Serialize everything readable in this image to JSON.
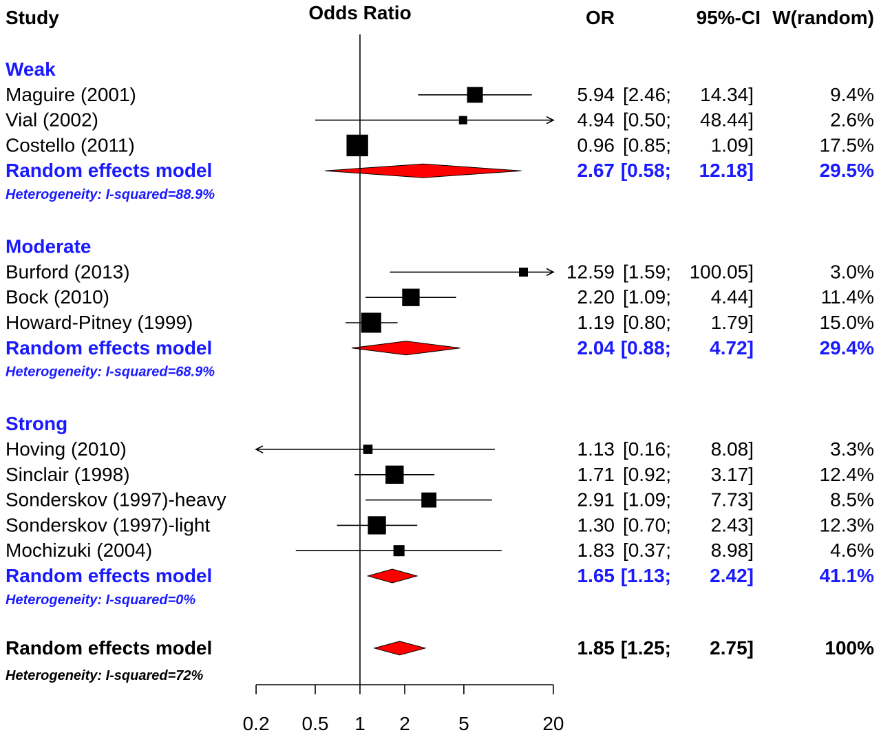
{
  "headers": {
    "study": "Study",
    "effect": "Odds Ratio",
    "or": "OR",
    "ci": "95%-CI",
    "weight": "W(random)"
  },
  "colors": {
    "group": "#1a1aff",
    "diamond": "#ff0000",
    "text": "#000000"
  },
  "chart_data": {
    "type": "forest",
    "xscale": "log",
    "xlim": [
      0.2,
      20
    ],
    "null_line": 1,
    "ticks": [
      0.2,
      0.5,
      1,
      2,
      5,
      20
    ],
    "tick_labels": [
      "0.2",
      "0.5",
      "1",
      "2",
      "5",
      "20"
    ],
    "groups": [
      {
        "name": "Weak",
        "studies": [
          {
            "label": "Maguire (2001)",
            "or": 5.94,
            "lower": 2.46,
            "upper": 14.34,
            "or_text": "5.94",
            "ci_lo_text": "[2.46;",
            "ci_hi_text": "14.34]",
            "weight_text": "9.4%",
            "weight": 9.4
          },
          {
            "label": "Vial (2002)",
            "or": 4.94,
            "lower": 0.5,
            "upper": 48.44,
            "or_text": "4.94",
            "ci_lo_text": "[0.50;",
            "ci_hi_text": "48.44]",
            "weight_text": "2.6%",
            "weight": 2.6
          },
          {
            "label": "Costello (2011)",
            "or": 0.96,
            "lower": 0.85,
            "upper": 1.09,
            "or_text": "0.96",
            "ci_lo_text": "[0.85;",
            "ci_hi_text": "1.09]",
            "weight_text": "17.5%",
            "weight": 17.5
          }
        ],
        "summary": {
          "label": "Random effects model",
          "or": 2.67,
          "lower": 0.58,
          "upper": 12.18,
          "or_text": "2.67",
          "ci_lo_text": "[0.58;",
          "ci_hi_text": "12.18]",
          "weight_text": "29.5%"
        },
        "heterogeneity": "Heterogeneity: I-squared=88.9%"
      },
      {
        "name": "Moderate",
        "studies": [
          {
            "label": "Burford (2013)",
            "or": 12.59,
            "lower": 1.59,
            "upper": 100.05,
            "or_text": "12.59",
            "ci_lo_text": "[1.59;",
            "ci_hi_text": "100.05]",
            "weight_text": "3.0%",
            "weight": 3.0
          },
          {
            "label": "Bock (2010)",
            "or": 2.2,
            "lower": 1.09,
            "upper": 4.44,
            "or_text": "2.20",
            "ci_lo_text": "[1.09;",
            "ci_hi_text": "4.44]",
            "weight_text": "11.4%",
            "weight": 11.4
          },
          {
            "label": "Howard-Pitney (1999)",
            "or": 1.19,
            "lower": 0.8,
            "upper": 1.79,
            "or_text": "1.19",
            "ci_lo_text": "[0.80;",
            "ci_hi_text": "1.79]",
            "weight_text": "15.0%",
            "weight": 15.0
          }
        ],
        "summary": {
          "label": "Random effects model",
          "or": 2.04,
          "lower": 0.88,
          "upper": 4.72,
          "or_text": "2.04",
          "ci_lo_text": "[0.88;",
          "ci_hi_text": "4.72]",
          "weight_text": "29.4%"
        },
        "heterogeneity": "Heterogeneity: I-squared=68.9%"
      },
      {
        "name": "Strong",
        "studies": [
          {
            "label": "Hoving (2010)",
            "or": 1.13,
            "lower": 0.16,
            "upper": 8.08,
            "or_text": "1.13",
            "ci_lo_text": "[0.16;",
            "ci_hi_text": "8.08]",
            "weight_text": "3.3%",
            "weight": 3.3
          },
          {
            "label": "Sinclair (1998)",
            "or": 1.71,
            "lower": 0.92,
            "upper": 3.17,
            "or_text": "1.71",
            "ci_lo_text": "[0.92;",
            "ci_hi_text": "3.17]",
            "weight_text": "12.4%",
            "weight": 12.4
          },
          {
            "label": "Sonderskov (1997)-heavy",
            "or": 2.91,
            "lower": 1.09,
            "upper": 7.73,
            "or_text": "2.91",
            "ci_lo_text": "[1.09;",
            "ci_hi_text": "7.73]",
            "weight_text": "8.5%",
            "weight": 8.5
          },
          {
            "label": "Sonderskov (1997)-light",
            "or": 1.3,
            "lower": 0.7,
            "upper": 2.43,
            "or_text": "1.30",
            "ci_lo_text": "[0.70;",
            "ci_hi_text": "2.43]",
            "weight_text": "12.3%",
            "weight": 12.3
          },
          {
            "label": "Mochizuki (2004)",
            "or": 1.83,
            "lower": 0.37,
            "upper": 8.98,
            "or_text": "1.83",
            "ci_lo_text": "[0.37;",
            "ci_hi_text": "8.98]",
            "weight_text": "4.6%",
            "weight": 4.6
          }
        ],
        "summary": {
          "label": "Random effects model",
          "or": 1.65,
          "lower": 1.13,
          "upper": 2.42,
          "or_text": "1.65",
          "ci_lo_text": "[1.13;",
          "ci_hi_text": "2.42]",
          "weight_text": "41.1%"
        },
        "heterogeneity": "Heterogeneity: I-squared=0%"
      }
    ],
    "overall": {
      "summary": {
        "label": "Random effects model",
        "or": 1.85,
        "lower": 1.25,
        "upper": 2.75,
        "or_text": "1.85",
        "ci_lo_text": "[1.25;",
        "ci_hi_text": "2.75]",
        "weight_text": "100%"
      },
      "heterogeneity": "Heterogeneity: I-squared=72%"
    }
  }
}
